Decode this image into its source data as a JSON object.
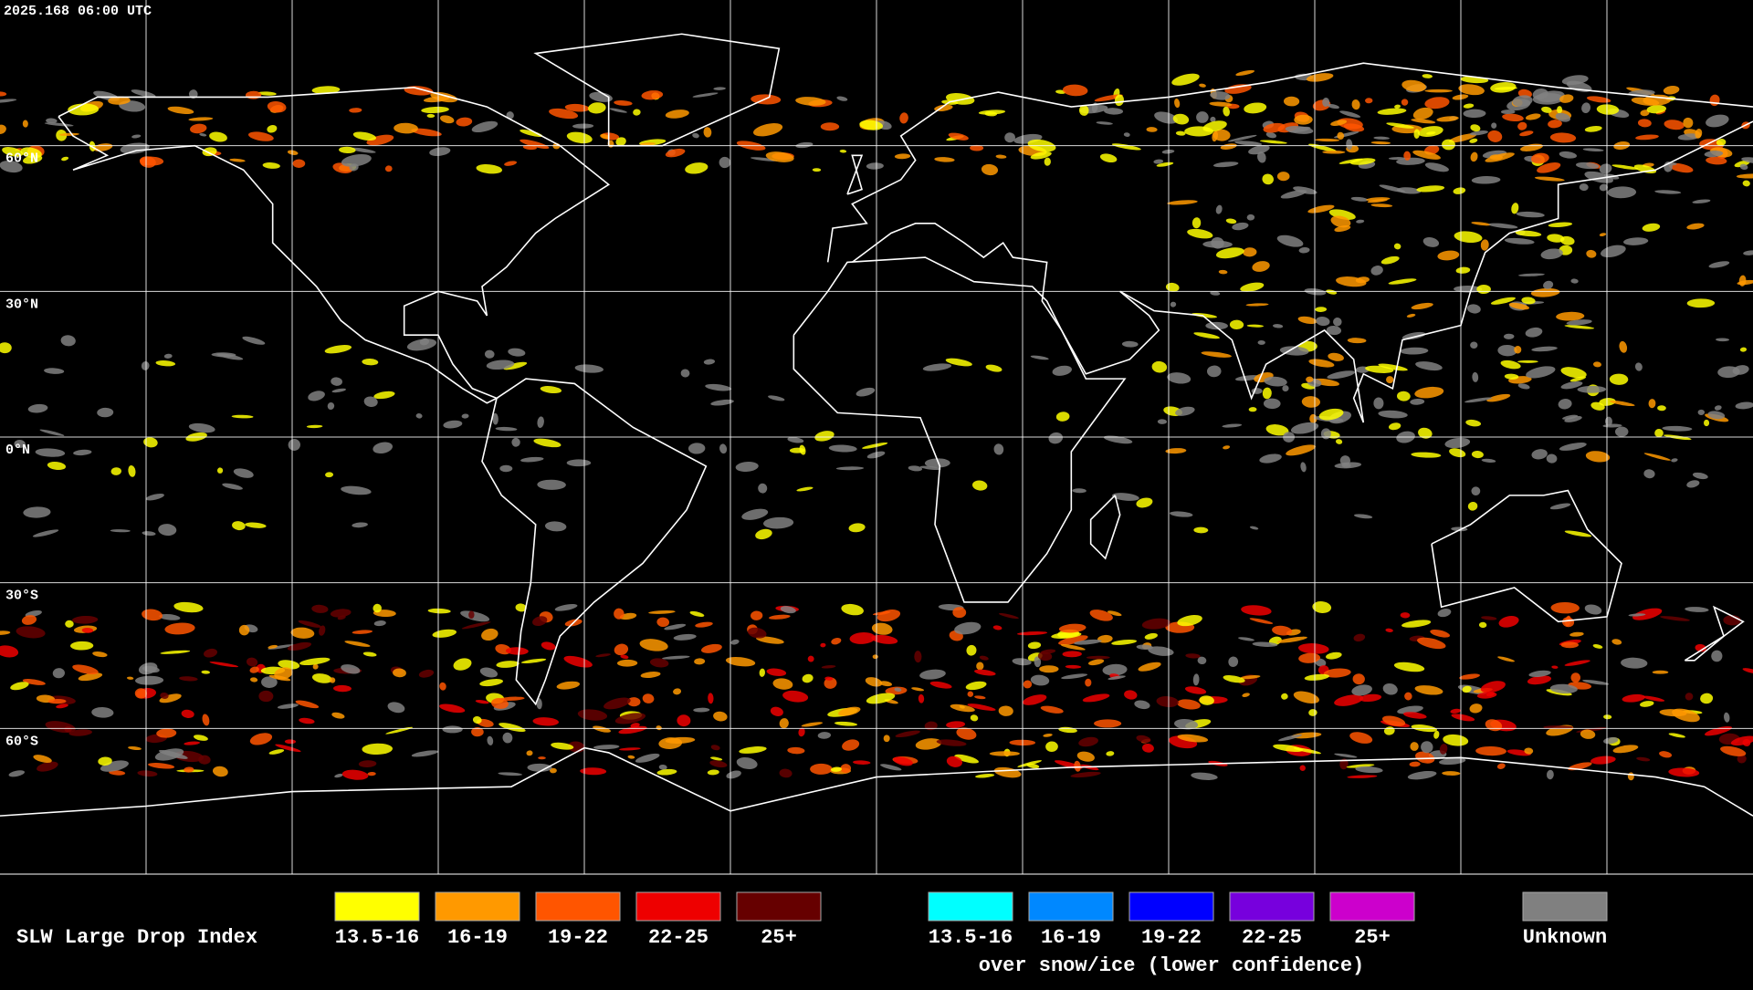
{
  "header": {
    "timestamp": "2025.168 06:00 UTC"
  },
  "map": {
    "lat_labels": [
      "60°N",
      "30°N",
      "0°N",
      "30°S",
      "60°S"
    ]
  },
  "legend": {
    "title": "SLW Large Drop Index",
    "groups": [
      {
        "items": [
          {
            "label": "13.5-16",
            "color": "#ffff00"
          },
          {
            "label": "16-19",
            "color": "#ff9900"
          },
          {
            "label": "19-22",
            "color": "#ff5500"
          },
          {
            "label": "22-25",
            "color": "#ee0000"
          },
          {
            "label": "25+",
            "color": "#660000"
          }
        ]
      },
      {
        "note": "over snow/ice (lower confidence)",
        "items": [
          {
            "label": "13.5-16",
            "color": "#00ffff"
          },
          {
            "label": "16-19",
            "color": "#0088ff"
          },
          {
            "label": "19-22",
            "color": "#0000ff"
          },
          {
            "label": "22-25",
            "color": "#7700dd"
          },
          {
            "label": "25+",
            "color": "#cc00cc"
          }
        ]
      },
      {
        "items": [
          {
            "label": "Unknown",
            "color": "#808080"
          }
        ]
      }
    ]
  }
}
